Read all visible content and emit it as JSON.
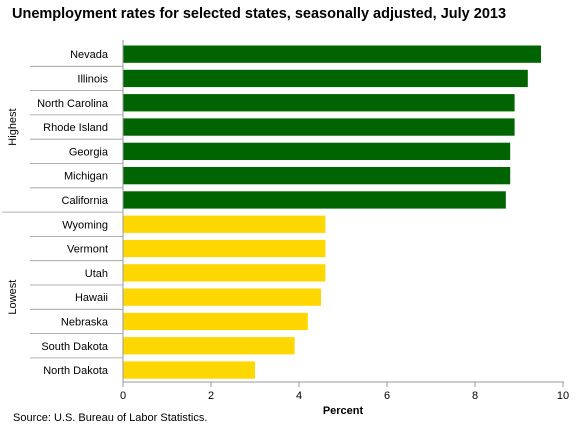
{
  "title": "Unemployment rates for selected states, seasonally adjusted, July 2013",
  "source": "Source: U.S. Bureau of Labor Statistics.",
  "chart_data": {
    "type": "bar",
    "orientation": "horizontal",
    "title": "Unemployment rates for selected states, seasonally adjusted, July 2013",
    "xlabel": "Percent",
    "ylabel": "",
    "xlim": [
      0,
      10
    ],
    "xticks": [
      0,
      2,
      4,
      6,
      8,
      10
    ],
    "grid": false,
    "groups": [
      {
        "name": "Highest",
        "color": "#006400",
        "categories": [
          "Nevada",
          "Illinois",
          "North Carolina",
          "Rhode Island",
          "Georgia",
          "Michigan",
          "California"
        ],
        "values": [
          9.5,
          9.2,
          8.9,
          8.9,
          8.8,
          8.8,
          8.7
        ]
      },
      {
        "name": "Lowest",
        "color": "#ffd700",
        "categories": [
          "Wyoming",
          "Vermont",
          "Utah",
          "Hawaii",
          "Nebraska",
          "South Dakota",
          "North Dakota"
        ],
        "values": [
          4.6,
          4.6,
          4.6,
          4.5,
          4.2,
          3.9,
          3.0
        ]
      }
    ]
  }
}
